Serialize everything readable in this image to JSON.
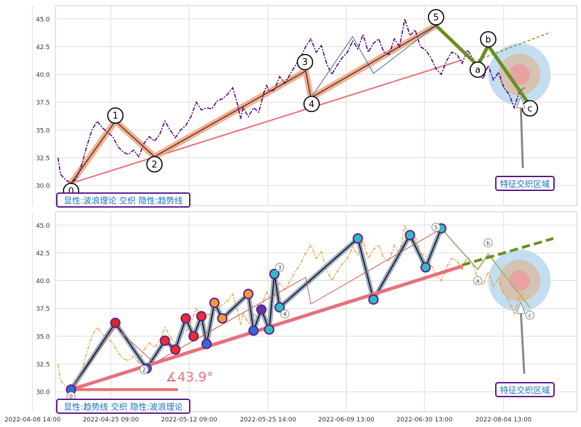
{
  "colors": {
    "price": "#4b0082",
    "price2": "#e8a33a",
    "wave_main": "#f4a582",
    "trend": "#e8707a",
    "abc": "#6b8e23",
    "frame": "#5a1a8a",
    "label_text": "#1a6fc4"
  },
  "chart_data": [
    {
      "type": "line",
      "title": "",
      "x_ticks": [
        "2022-04-08 14:00",
        "2022-04-25 09:00",
        "2022-05-12 09:00",
        "2022-05-25 14:00",
        "2022-06-09 13:00",
        "2022-06-30 13:00",
        "2022-08-04 13:00"
      ],
      "y_ticks": [
        "30.0",
        "32.5",
        "35.0",
        "37.5",
        "40.0",
        "42.5",
        "45.0"
      ],
      "ylim": [
        28.2,
        46.2
      ],
      "xlim": [
        0,
        100
      ],
      "grid": true,
      "price_series": [
        [
          0.5,
          32.5
        ],
        [
          1,
          31
        ],
        [
          2,
          30.5
        ],
        [
          3,
          30.2
        ],
        [
          4,
          30.6
        ],
        [
          5,
          31.8
        ],
        [
          6,
          33.5
        ],
        [
          7,
          35.0
        ],
        [
          8,
          35.8
        ],
        [
          9,
          35.2
        ],
        [
          10,
          34.8
        ],
        [
          11,
          34.4
        ],
        [
          12,
          33.5
        ],
        [
          13,
          33.0
        ],
        [
          14,
          32.8
        ],
        [
          15,
          33.2
        ],
        [
          16,
          32.6
        ],
        [
          17,
          33.8
        ],
        [
          18,
          34.4
        ],
        [
          19,
          34.0
        ],
        [
          20,
          34.6
        ],
        [
          21,
          35.8
        ],
        [
          22,
          35.0
        ],
        [
          23,
          34.3
        ],
        [
          24,
          35.0
        ],
        [
          25,
          35.4
        ],
        [
          26,
          36.2
        ],
        [
          27,
          37.5
        ],
        [
          28,
          36.8
        ],
        [
          29,
          37.0
        ],
        [
          30,
          36.9
        ],
        [
          31,
          37.6
        ],
        [
          32,
          37.8
        ],
        [
          33,
          38.2
        ],
        [
          34,
          38.8
        ],
        [
          35,
          37.2
        ],
        [
          35.5,
          36.0
        ],
        [
          36,
          37.0
        ],
        [
          37,
          36.2
        ],
        [
          38,
          37.0
        ],
        [
          39,
          36.6
        ],
        [
          40,
          38.4
        ],
        [
          40.5,
          39.0
        ],
        [
          41,
          38.5
        ],
        [
          42,
          38.6
        ],
        [
          43,
          39.8
        ],
        [
          44,
          39.2
        ],
        [
          45,
          40.0
        ],
        [
          46,
          40.8
        ],
        [
          47,
          41.5
        ],
        [
          48,
          42.5
        ],
        [
          49,
          43.2
        ],
        [
          50,
          42.0
        ],
        [
          51,
          42.6
        ],
        [
          52,
          41.0
        ],
        [
          53,
          40.0
        ],
        [
          54,
          40.8
        ],
        [
          55,
          41.5
        ],
        [
          56,
          42.0
        ],
        [
          57,
          43.0
        ],
        [
          58,
          42.3
        ],
        [
          59,
          43.6
        ],
        [
          60,
          42.0
        ],
        [
          61,
          42.8
        ],
        [
          62,
          43.2
        ],
        [
          63,
          42.0
        ],
        [
          64,
          41.8
        ],
        [
          65,
          43.2
        ],
        [
          66,
          42.5
        ],
        [
          67,
          45.0
        ],
        [
          68,
          43.5
        ],
        [
          69,
          44.0
        ],
        [
          70,
          42.5
        ],
        [
          71,
          42.2
        ],
        [
          72,
          41.5
        ],
        [
          73,
          40.5
        ],
        [
          74,
          40.0
        ],
        [
          75,
          41.2
        ],
        [
          76,
          42.0
        ],
        [
          77,
          41.8
        ],
        [
          78,
          41.0
        ],
        [
          79,
          42.2
        ],
        [
          80,
          41.5
        ],
        [
          81,
          40.2
        ],
        [
          82,
          39.6
        ],
        [
          83,
          40.8
        ],
        [
          84,
          39.5
        ],
        [
          85,
          40.2
        ],
        [
          86,
          38.8
        ],
        [
          87,
          38.2
        ],
        [
          88,
          37.0
        ],
        [
          89,
          38.5
        ],
        [
          90,
          38.8
        ]
      ],
      "wave_points": [
        {
          "label": "0",
          "x": 3,
          "y": 30.2
        },
        {
          "label": "1",
          "x": 11.5,
          "y": 35.8
        },
        {
          "label": "2",
          "x": 19,
          "y": 32.6
        },
        {
          "label": "3",
          "x": 48,
          "y": 40.3
        },
        {
          "label": "4",
          "x": 49,
          "y": 37.9
        },
        {
          "label": "5",
          "x": 73,
          "y": 44.4
        },
        {
          "label": "a",
          "x": 81,
          "y": 40.8
        },
        {
          "label": "b",
          "x": 83,
          "y": 42.6
        },
        {
          "label": "c",
          "x": 91,
          "y": 37.2
        }
      ],
      "trend_line": [
        [
          3,
          30.2
        ],
        [
          78,
          41.3
        ]
      ],
      "region_label": "特征交织区域",
      "caption": "显性:波浪理论 交织 隐性:趋势线"
    },
    {
      "type": "line",
      "title": "",
      "x_ticks": [
        "2022-04-08 14:00",
        "2022-04-25 09:00",
        "2022-05-12 09:00",
        "2022-05-25 14:00",
        "2022-06-09 13:00",
        "2022-06-30 13:00",
        "2022-08-04 13:00"
      ],
      "y_ticks": [
        "30.0",
        "32.5",
        "35.0",
        "37.5",
        "40.0",
        "42.5",
        "45.0"
      ],
      "ylim": [
        28.2,
        46.2
      ],
      "xlim": [
        0,
        100
      ],
      "grid": true,
      "angle_label": "∡43.9°",
      "region_label": "特征交织区域",
      "caption": "显性:趋势线 交织 隐性:波浪理论"
    }
  ]
}
